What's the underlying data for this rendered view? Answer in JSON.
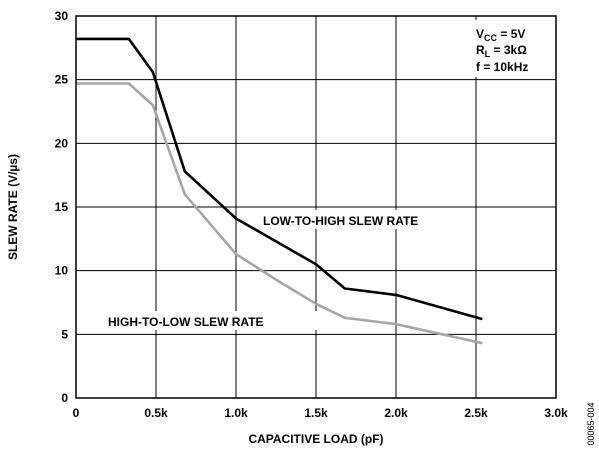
{
  "chart_data": {
    "type": "line",
    "xlabel": "CAPACITIVE LOAD (pF)",
    "ylabel": "SLEW RATE (V/µs)",
    "xlim": [
      0,
      3000
    ],
    "ylim": [
      0,
      30
    ],
    "x_ticks": [
      0,
      500,
      1000,
      1500,
      2000,
      2500,
      3000
    ],
    "x_tick_labels": [
      "0",
      "0.5k",
      "1.0k",
      "1.5k",
      "2.0k",
      "2.5k",
      "3.0k"
    ],
    "y_ticks": [
      0,
      5,
      10,
      15,
      20,
      25,
      30
    ],
    "y_tick_labels": [
      "0",
      "5",
      "10",
      "15",
      "20",
      "25",
      "30"
    ],
    "grid": true,
    "series": [
      {
        "name": "LOW-TO-HIGH SLEW RATE",
        "color": "#000000",
        "x": [
          0,
          330,
          480,
          680,
          1000,
          1250,
          1500,
          1680,
          2000,
          2540
        ],
        "y": [
          28.2,
          28.2,
          25.6,
          17.8,
          14.1,
          12.3,
          10.5,
          8.6,
          8.1,
          6.2
        ]
      },
      {
        "name": "HIGH-TO-LOW SLEW RATE",
        "color": "#a6a6a6",
        "x": [
          0,
          330,
          480,
          680,
          1000,
          1250,
          1500,
          1680,
          2000,
          2540
        ],
        "y": [
          24.7,
          24.7,
          23.0,
          16.0,
          11.3,
          9.3,
          7.4,
          6.3,
          5.8,
          4.3
        ]
      }
    ],
    "annotations": {
      "conditions": {
        "vcc_main": "V",
        "vcc_sub": "CC",
        "vcc_rest": " = 5V",
        "rl_main": "R",
        "rl_sub": "L",
        "rl_rest": " = 3kΩ",
        "freq": "f = 10kHz"
      },
      "low_to_high_label": "LOW-TO-HIGH SLEW RATE",
      "high_to_low_label": "HIGH-TO-LOW SLEW RATE"
    },
    "figure_code": "00065-004"
  }
}
